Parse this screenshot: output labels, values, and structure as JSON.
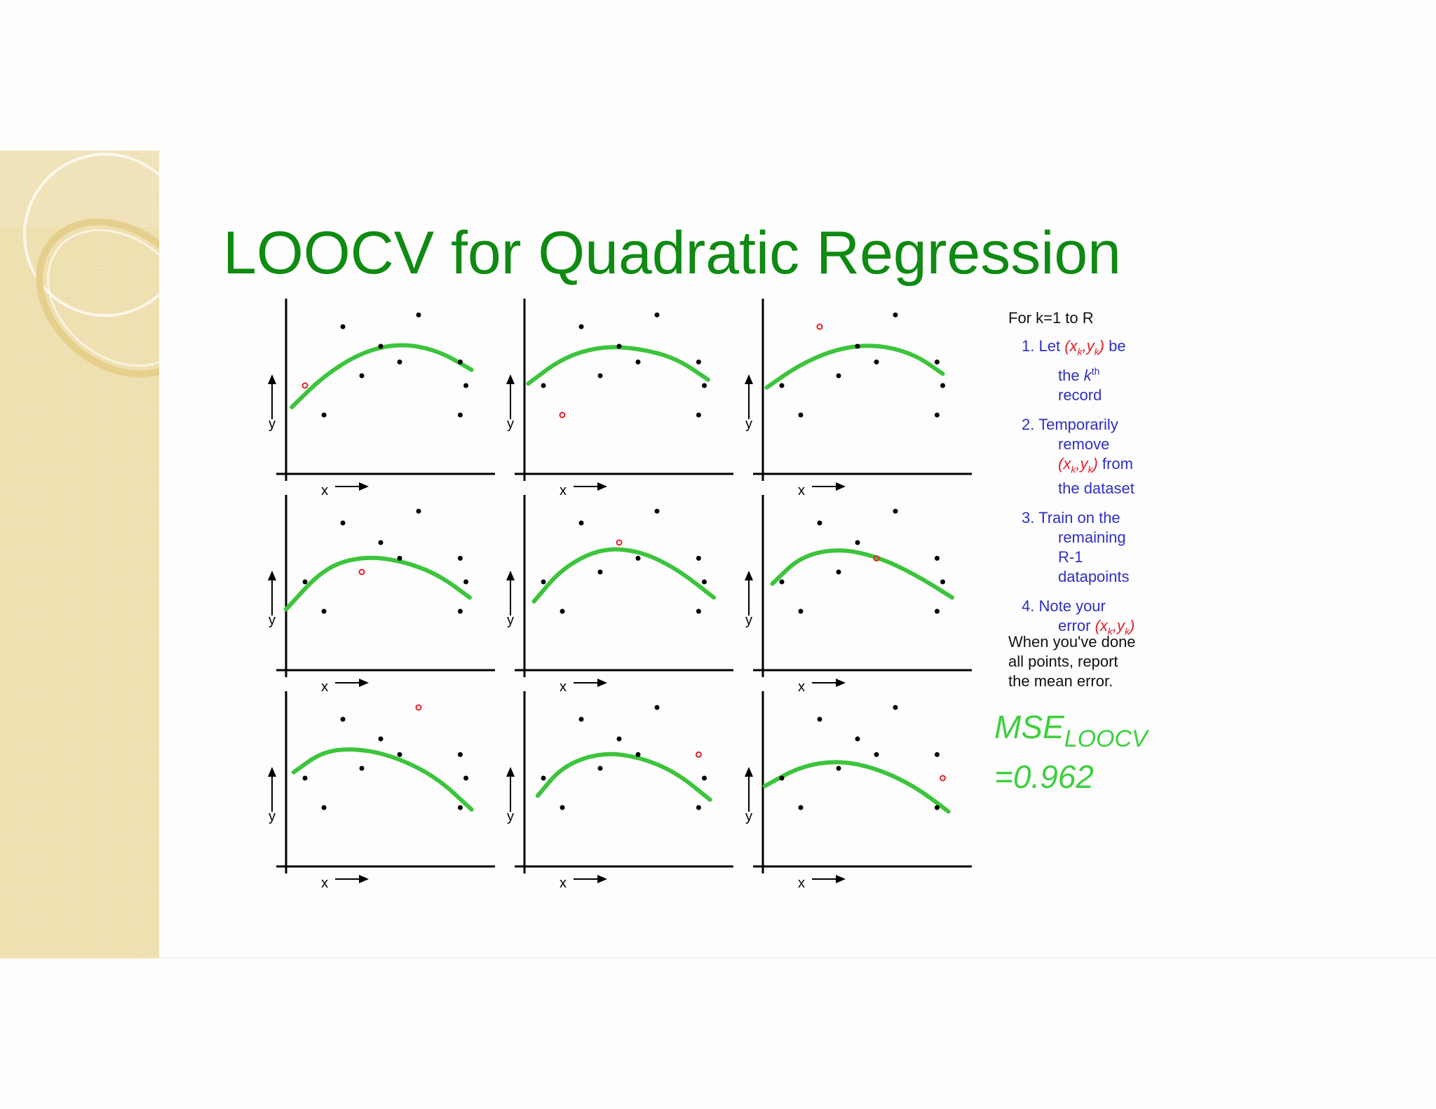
{
  "slide": {
    "title": "LOOCV for Quadratic Regression",
    "for_line": "For k=1 to R",
    "steps": {
      "s1": {
        "num": "1.",
        "pre": "Let",
        "pair": "(xk,yk)",
        "post": "be the kth record"
      },
      "s2": {
        "num": "2.",
        "pre": "Temporarily remove",
        "pair": "(xk,yk)",
        "post": "from the dataset"
      },
      "s3": {
        "num": "3.",
        "text": "Train on the remaining R-1 datapoints"
      },
      "s4": {
        "num": "4.",
        "pre": "Note your error",
        "pair": "(xk,yk)"
      }
    },
    "closing": "When you've done all points, report the mean error.",
    "mse_label": "MSE",
    "mse_sub": "LOOCV",
    "mse_value": "=0.962"
  },
  "chart_data": {
    "type": "scatter",
    "xlabel": "x",
    "ylabel": "y",
    "colors": {
      "points": "#000000",
      "held_out": "#e0202a",
      "fit": "#3cc43c",
      "axes": "#000000"
    },
    "points": [
      [
        1,
        4.5
      ],
      [
        2,
        3
      ],
      [
        3,
        7.5
      ],
      [
        4,
        5
      ],
      [
        5,
        6.5
      ],
      [
        6,
        5.7
      ],
      [
        7,
        8.1
      ],
      [
        9.2,
        5.7
      ],
      [
        9.5,
        4.5
      ],
      [
        9.2,
        3
      ]
    ],
    "panels": [
      {
        "held_out": 0,
        "fit": [
          [
            0.3,
            3.4
          ],
          [
            2,
            5
          ],
          [
            4,
            6.2
          ],
          [
            6,
            6.65
          ],
          [
            8,
            6.3
          ],
          [
            9.8,
            5.3
          ]
        ]
      },
      {
        "held_out": 1,
        "fit": [
          [
            0.2,
            4.6
          ],
          [
            2,
            5.9
          ],
          [
            4,
            6.5
          ],
          [
            6,
            6.4
          ],
          [
            8,
            5.9
          ],
          [
            9.7,
            4.8
          ]
        ]
      },
      {
        "held_out": 2,
        "fit": [
          [
            0.2,
            4.4
          ],
          [
            2,
            5.6
          ],
          [
            4,
            6.4
          ],
          [
            6,
            6.6
          ],
          [
            8,
            6.1
          ],
          [
            9.5,
            5.1
          ]
        ]
      },
      {
        "held_out": 3,
        "fit": [
          [
            0,
            3.1
          ],
          [
            2,
            5.2
          ],
          [
            4,
            5.8
          ],
          [
            6,
            5.6
          ],
          [
            8,
            4.9
          ],
          [
            9.7,
            3.7
          ]
        ]
      },
      {
        "held_out": 4,
        "fit": [
          [
            0.5,
            3.5
          ],
          [
            2,
            5.2
          ],
          [
            4,
            6.2
          ],
          [
            6,
            6.1
          ],
          [
            8,
            5.2
          ],
          [
            10,
            3.7
          ]
        ]
      },
      {
        "held_out": 5,
        "fit": [
          [
            0.5,
            4.4
          ],
          [
            2,
            5.8
          ],
          [
            4,
            6.2
          ],
          [
            6,
            5.8
          ],
          [
            8,
            4.9
          ],
          [
            10,
            3.7
          ]
        ]
      },
      {
        "held_out": 6,
        "fit": [
          [
            0.4,
            4.8
          ],
          [
            2,
            5.9
          ],
          [
            4,
            6
          ],
          [
            6,
            5.5
          ],
          [
            8,
            4.5
          ],
          [
            9.8,
            2.9
          ]
        ]
      },
      {
        "held_out": 7,
        "fit": [
          [
            0.7,
            3.6
          ],
          [
            2,
            5.1
          ],
          [
            4,
            5.8
          ],
          [
            6,
            5.6
          ],
          [
            8,
            4.8
          ],
          [
            9.8,
            3.4
          ]
        ]
      },
      {
        "held_out": 8,
        "fit": [
          [
            0.1,
            4.1
          ],
          [
            2,
            5.1
          ],
          [
            4,
            5.4
          ],
          [
            6,
            5
          ],
          [
            8,
            4.1
          ],
          [
            9.8,
            2.8
          ]
        ]
      }
    ]
  }
}
